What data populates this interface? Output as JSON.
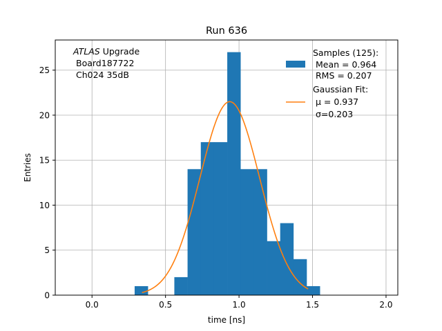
{
  "chart_data": {
    "type": "bar",
    "title": "Run 636",
    "xlabel": "time [ns]",
    "ylabel": "Entries",
    "xlim": [
      -0.25,
      2.08
    ],
    "ylim": [
      0,
      28.35
    ],
    "grid": true,
    "xticks": [
      {
        "value": 0.0,
        "label": "0.0"
      },
      {
        "value": 0.5,
        "label": "0.5"
      },
      {
        "value": 1.0,
        "label": "1.0"
      },
      {
        "value": 1.5,
        "label": "1.5"
      },
      {
        "value": 2.0,
        "label": "2.0"
      }
    ],
    "yticks": [
      {
        "value": 0,
        "label": "0"
      },
      {
        "value": 5,
        "label": "5"
      },
      {
        "value": 10,
        "label": "10"
      },
      {
        "value": 15,
        "label": "15"
      },
      {
        "value": 20,
        "label": "20"
      },
      {
        "value": 25,
        "label": "25"
      }
    ],
    "histogram": {
      "color": "#1f77b4",
      "bin_width": 0.09,
      "bins": [
        {
          "left": 0.29,
          "count": 1
        },
        {
          "left": 0.38,
          "count": 0
        },
        {
          "left": 0.47,
          "count": 0
        },
        {
          "left": 0.56,
          "count": 2
        },
        {
          "left": 0.65,
          "count": 14
        },
        {
          "left": 0.74,
          "count": 17
        },
        {
          "left": 0.83,
          "count": 17
        },
        {
          "left": 0.92,
          "count": 27
        },
        {
          "left": 1.01,
          "count": 14
        },
        {
          "left": 1.1,
          "count": 14
        },
        {
          "left": 1.19,
          "count": 6
        },
        {
          "left": 1.28,
          "count": 8
        },
        {
          "left": 1.37,
          "count": 4
        },
        {
          "left": 1.46,
          "count": 1
        }
      ]
    },
    "fit": {
      "color": "#ff7f0e",
      "mu": 0.937,
      "sigma": 0.203,
      "peak": 21.5,
      "x_range": [
        0.34,
        1.47
      ]
    },
    "annotation_lines": [
      {
        "italic": "ATLAS",
        "text": " Upgrade"
      },
      {
        "italic": "",
        "text": "Board187722"
      },
      {
        "italic": "",
        "text": "Ch024 35dB"
      }
    ],
    "legend": {
      "placement": "top-right",
      "entries": [
        {
          "kind": "patch",
          "color": "#1f77b4",
          "lines": [
            "Samples (125):",
            " Mean = 0.964",
            " RMS = 0.207"
          ]
        },
        {
          "kind": "line",
          "color": "#ff7f0e",
          "lines": [
            "Gaussian Fit:",
            " μ = 0.937",
            " σ=0.203"
          ]
        }
      ]
    }
  }
}
